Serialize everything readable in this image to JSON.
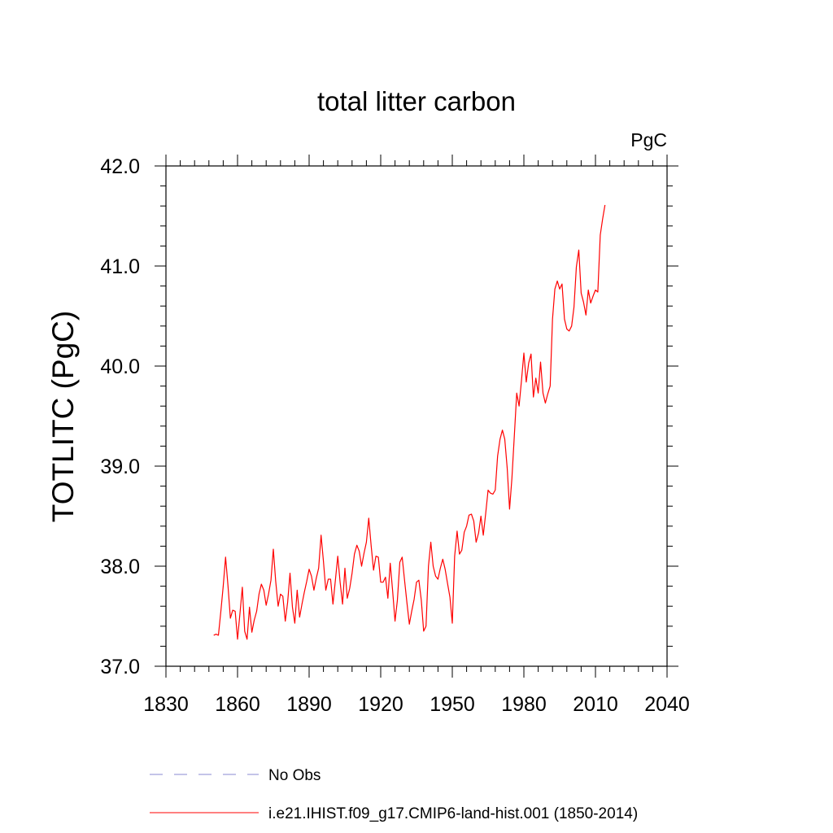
{
  "chart_data": {
    "type": "line",
    "title": "total litter carbon",
    "units": "PgC",
    "xlabel": "",
    "ylabel": "TOTLITC  (PgC)",
    "xlim": [
      1830,
      2040
    ],
    "ylim": [
      37.0,
      42.0
    ],
    "xticks": [
      1830,
      1860,
      1890,
      1920,
      1950,
      1980,
      2010,
      2040
    ],
    "xtick_labels": [
      "1830",
      "1860",
      "1890",
      "1920",
      "1950",
      "1980",
      "2010",
      "2040"
    ],
    "yticks": [
      37.0,
      38.0,
      39.0,
      40.0,
      41.0,
      42.0
    ],
    "ytick_labels": [
      "37.0",
      "38.0",
      "39.0",
      "40.0",
      "41.0",
      "42.0"
    ],
    "grid": false,
    "legend_position": "bottom",
    "series": [
      {
        "name": "No Obs",
        "color": "#8a8ad0",
        "dash": true,
        "x": [],
        "y": []
      },
      {
        "name": "i.e21.IHIST.f09_g17.CMIP6-land-hist.001 (1850-2014)",
        "color": "#ff0000",
        "dash": false,
        "x": [
          1850,
          1851,
          1852,
          1853,
          1854,
          1855,
          1856,
          1857,
          1858,
          1859,
          1860,
          1861,
          1862,
          1863,
          1864,
          1865,
          1866,
          1867,
          1868,
          1869,
          1870,
          1871,
          1872,
          1873,
          1874,
          1875,
          1876,
          1877,
          1878,
          1879,
          1880,
          1881,
          1882,
          1883,
          1884,
          1885,
          1886,
          1887,
          1888,
          1889,
          1890,
          1891,
          1892,
          1893,
          1894,
          1895,
          1896,
          1897,
          1898,
          1899,
          1900,
          1901,
          1902,
          1903,
          1904,
          1905,
          1906,
          1907,
          1908,
          1909,
          1910,
          1911,
          1912,
          1913,
          1914,
          1915,
          1916,
          1917,
          1918,
          1919,
          1920,
          1921,
          1922,
          1923,
          1924,
          1925,
          1926,
          1927,
          1928,
          1929,
          1930,
          1931,
          1932,
          1933,
          1934,
          1935,
          1936,
          1937,
          1938,
          1939,
          1940,
          1941,
          1942,
          1943,
          1944,
          1945,
          1946,
          1947,
          1948,
          1949,
          1950,
          1951,
          1952,
          1953,
          1954,
          1955,
          1956,
          1957,
          1958,
          1959,
          1960,
          1961,
          1962,
          1963,
          1964,
          1965,
          1966,
          1967,
          1968,
          1969,
          1970,
          1971,
          1972,
          1973,
          1974,
          1975,
          1976,
          1977,
          1978,
          1979,
          1980,
          1981,
          1982,
          1983,
          1984,
          1985,
          1986,
          1987,
          1988,
          1989,
          1990,
          1991,
          1992,
          1993,
          1994,
          1995,
          1996,
          1997,
          1998,
          1999,
          2000,
          2001,
          2002,
          2003,
          2004,
          2005,
          2006,
          2007,
          2008,
          2009,
          2010,
          2011,
          2012,
          2013,
          2014
        ],
        "y": [
          37.31,
          37.32,
          37.31,
          37.55,
          37.8,
          38.09,
          37.8,
          37.48,
          37.56,
          37.55,
          37.27,
          37.52,
          37.79,
          37.35,
          37.27,
          37.59,
          37.34,
          37.46,
          37.55,
          37.72,
          37.82,
          37.76,
          37.61,
          37.72,
          37.86,
          38.17,
          37.85,
          37.6,
          37.72,
          37.7,
          37.45,
          37.64,
          37.93,
          37.59,
          37.43,
          37.76,
          37.49,
          37.62,
          37.74,
          37.85,
          37.97,
          37.9,
          37.76,
          37.88,
          37.98,
          38.31,
          38.05,
          37.76,
          37.87,
          37.87,
          37.62,
          37.86,
          38.1,
          37.84,
          37.62,
          37.98,
          37.68,
          37.78,
          37.93,
          38.12,
          38.21,
          38.15,
          38.0,
          38.13,
          38.24,
          38.48,
          38.2,
          37.96,
          38.1,
          38.09,
          37.84,
          37.84,
          37.89,
          37.68,
          38.03,
          37.75,
          37.45,
          37.66,
          38.04,
          38.09,
          37.86,
          37.63,
          37.42,
          37.55,
          37.67,
          37.84,
          37.86,
          37.66,
          37.35,
          37.4,
          38.0,
          38.24,
          38.0,
          37.9,
          37.87,
          37.98,
          38.07,
          37.97,
          37.83,
          37.69,
          37.43,
          38.1,
          38.35,
          38.12,
          38.16,
          38.34,
          38.4,
          38.51,
          38.52,
          38.45,
          38.24,
          38.33,
          38.5,
          38.31,
          38.53,
          38.76,
          38.73,
          38.72,
          38.76,
          39.1,
          39.27,
          39.36,
          39.27,
          38.98,
          38.57,
          38.88,
          39.31,
          39.73,
          39.6,
          39.86,
          40.13,
          39.84,
          40.03,
          40.12,
          39.69,
          39.88,
          39.73,
          40.04,
          39.73,
          39.63,
          39.72,
          39.8,
          40.47,
          40.77,
          40.85,
          40.77,
          40.82,
          40.47,
          40.37,
          40.35,
          40.4,
          40.59,
          40.99,
          41.16,
          40.73,
          40.64,
          40.51,
          40.76,
          40.63,
          40.7,
          40.76,
          40.74,
          41.31,
          41.47,
          41.61
        ]
      }
    ]
  }
}
